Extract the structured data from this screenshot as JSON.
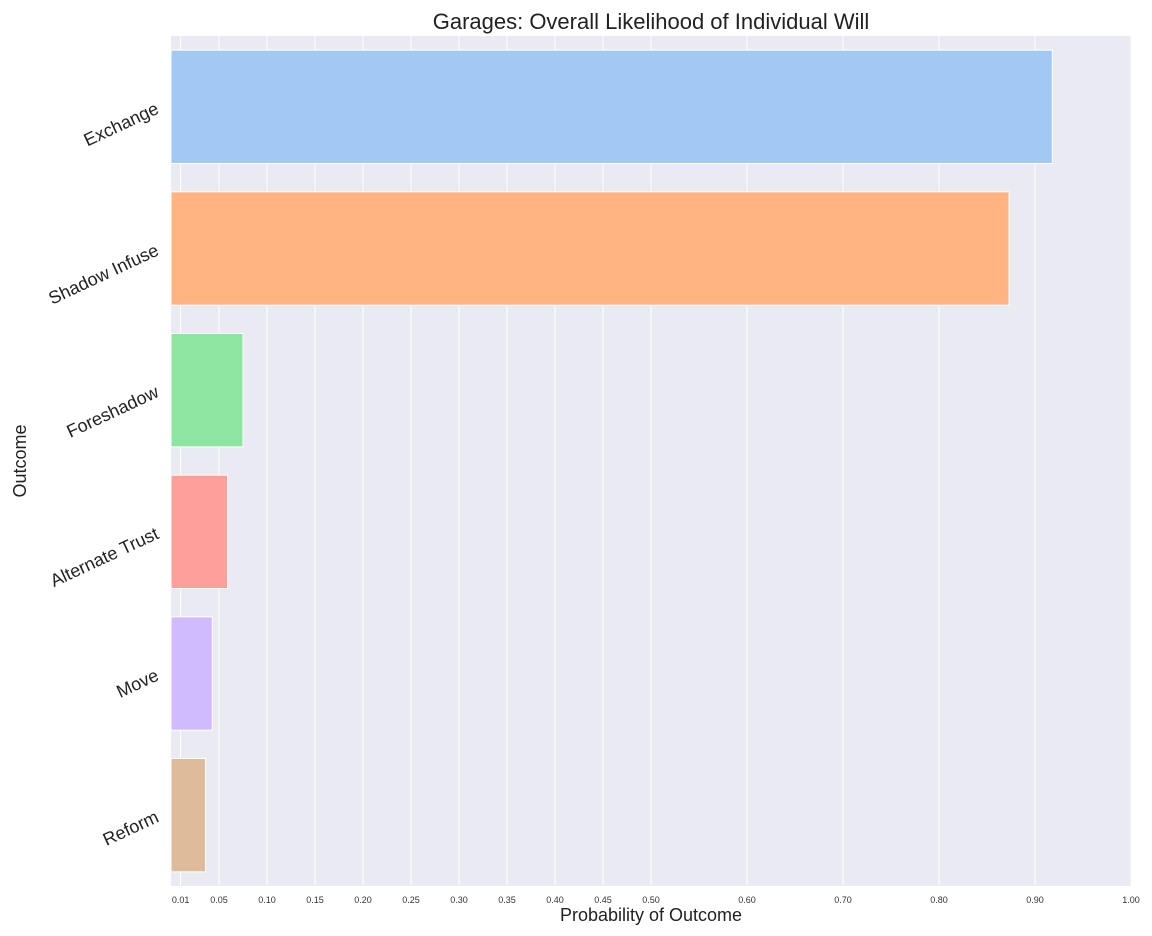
{
  "chart_data": {
    "type": "bar",
    "orientation": "horizontal",
    "title": "Garages: Overall Likelihood of Individual Will",
    "xlabel": "Probability of Outcome",
    "ylabel": "Outcome",
    "categories": [
      "Exchange",
      "Shadow Infuse",
      "Foreshadow",
      "Alternate Trust",
      "Move",
      "Reform"
    ],
    "values": [
      0.918,
      0.873,
      0.075,
      0.059,
      0.043,
      0.036
    ],
    "colors": [
      "#a1c9f4",
      "#ffb482",
      "#8de5a1",
      "#ff9f9b",
      "#d0bbff",
      "#debb9b"
    ],
    "xlim": [
      0,
      1.0
    ],
    "xticks": [
      "0.01",
      "0.05",
      "0.10",
      "0.15",
      "0.20",
      "0.25",
      "0.30",
      "0.35",
      "0.40",
      "0.45",
      "0.50",
      "0.60",
      "0.70",
      "0.80",
      "0.90",
      "1.00"
    ],
    "grid": true,
    "background": "#eaeaf2"
  }
}
